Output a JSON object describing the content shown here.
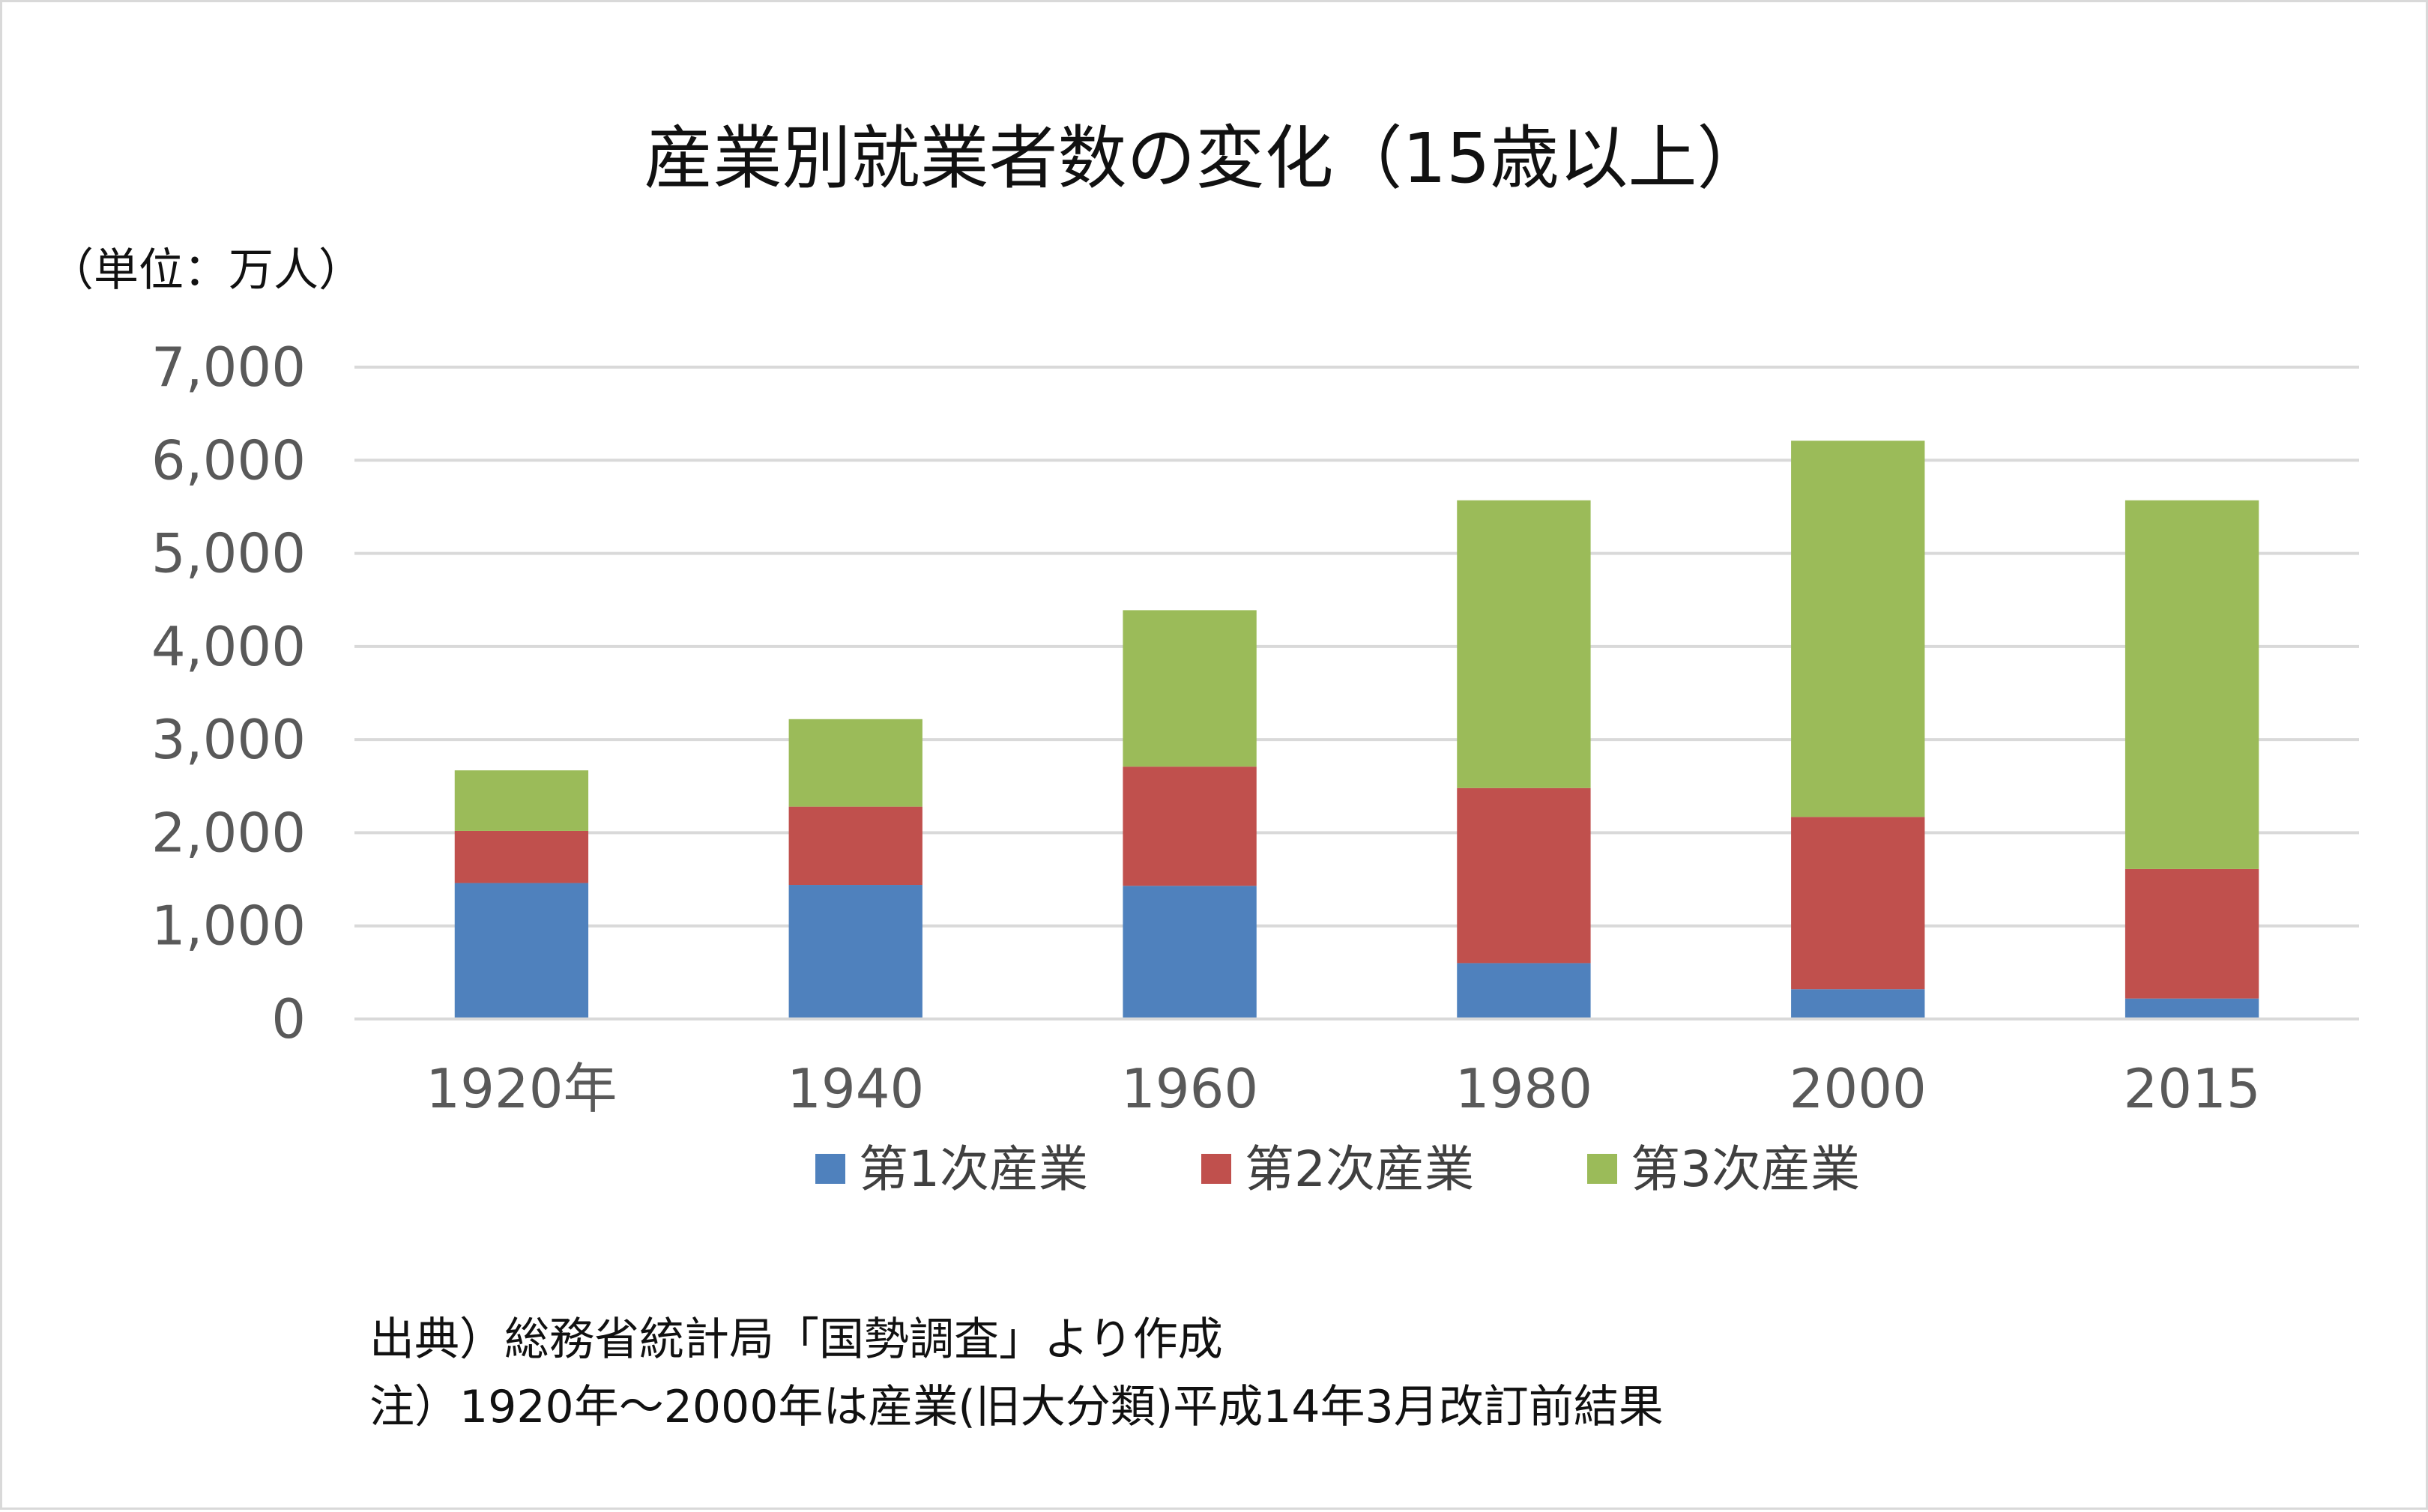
{
  "chart_data": {
    "type": "bar",
    "stacked": true,
    "title": "産業別就業者数の変化（15歳以上）",
    "unit_label": "（単位：万人）",
    "categories": [
      "1920年",
      "1940",
      "1960",
      "1980",
      "2000",
      "2015"
    ],
    "ylim": [
      0,
      7000
    ],
    "y_ticks": [
      "0",
      "1,000",
      "2,000",
      "3,000",
      "4,000",
      "5,000",
      "6,000",
      "7,000"
    ],
    "y_tick_values": [
      0,
      1000,
      2000,
      3000,
      4000,
      5000,
      6000,
      7000
    ],
    "grid": true,
    "legend_position": "bottom",
    "series": [
      {
        "name": "第1次産業",
        "color": "#4f81bd",
        "values": [
          1460,
          1440,
          1430,
          600,
          320,
          220
        ]
      },
      {
        "name": "第2次産業",
        "color": "#c0504d",
        "values": [
          560,
          840,
          1280,
          1880,
          1850,
          1390
        ]
      },
      {
        "name": "第3次産業",
        "color": "#9bbb59",
        "values": [
          650,
          940,
          1680,
          3090,
          4040,
          3960
        ]
      }
    ]
  },
  "notes": {
    "source": "出典）総務省統計局「国勢調査」より作成",
    "note": "注）1920年～2000年は産業(旧大分類)平成14年3月改訂前結果"
  }
}
